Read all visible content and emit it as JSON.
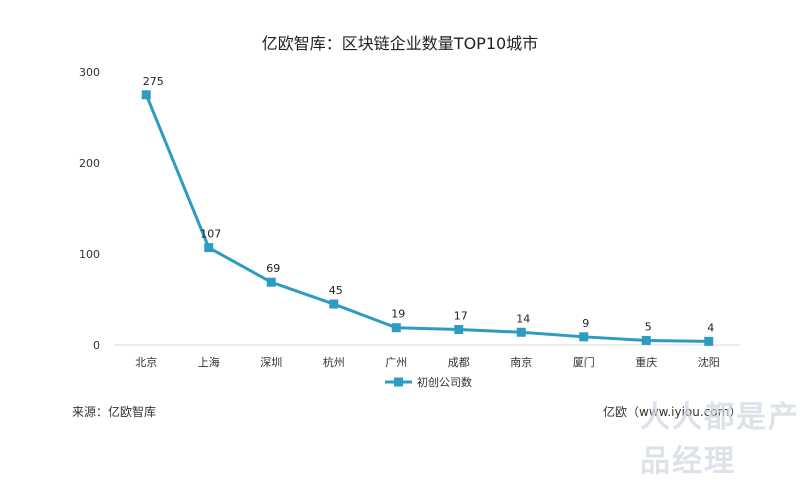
{
  "source_label": "来源：亿欧智库",
  "credit_text": "亿欧（www.iyiou.com）",
  "watermark_text": "人人都是产品经理",
  "chart_data": {
    "type": "line",
    "title": "亿欧智库：区块链企业数量TOP10城市",
    "categories": [
      "北京",
      "上海",
      "深圳",
      "杭州",
      "广州",
      "成都",
      "南京",
      "厦门",
      "重庆",
      "沈阳"
    ],
    "series": [
      {
        "name": "初创公司数",
        "values": [
          275,
          107,
          69,
          45,
          19,
          17,
          14,
          9,
          5,
          4
        ],
        "color": "#2e9cc1"
      }
    ],
    "ylim": [
      0,
      300
    ],
    "yticks": [
      0,
      100,
      200,
      300
    ],
    "xlabel": "",
    "ylabel": "",
    "grid": false,
    "legend": "bottom-center",
    "marker": "square"
  }
}
